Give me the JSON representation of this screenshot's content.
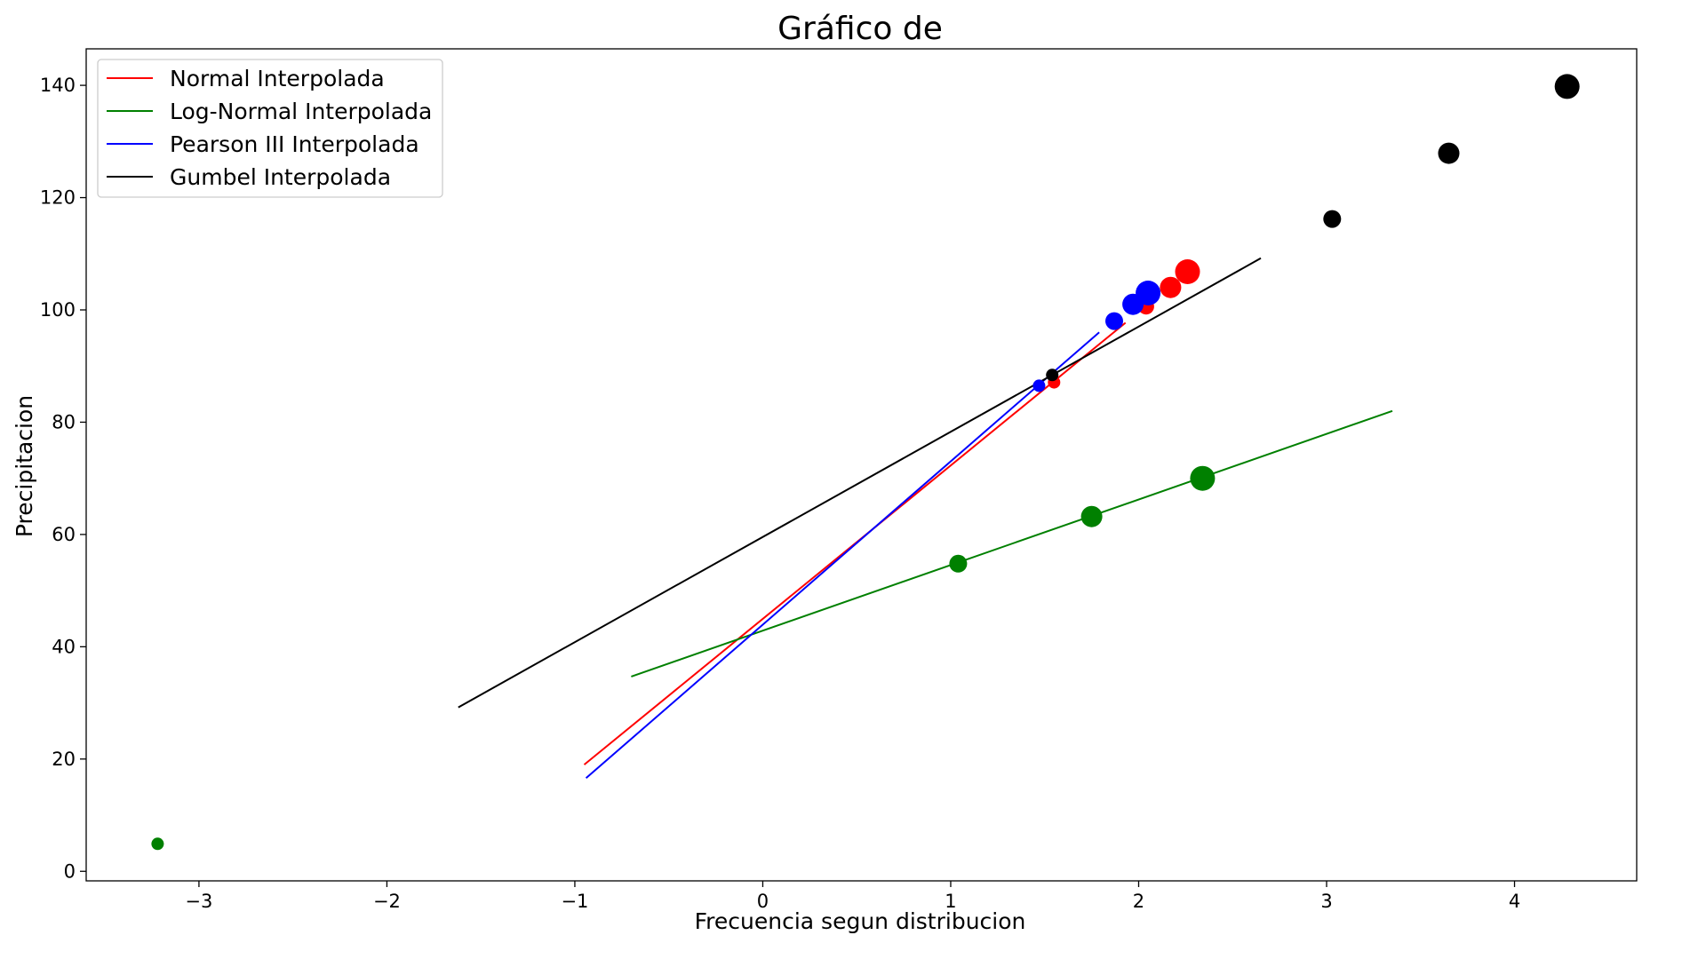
{
  "chart_data": {
    "type": "scatter",
    "title": "Gráfico de",
    "xlabel": "Frecuencia segun distribucion",
    "ylabel": "Precipitacion",
    "xlim": [
      -3.6,
      4.65
    ],
    "ylim": [
      -1.7,
      146.5
    ],
    "x_ticks": [
      -3,
      -2,
      -1,
      0,
      1,
      2,
      3,
      4
    ],
    "y_ticks": [
      0,
      20,
      40,
      60,
      80,
      100,
      120,
      140
    ],
    "x_tick_labels": [
      "−3",
      "−2",
      "−1",
      "0",
      "1",
      "2",
      "3",
      "4"
    ],
    "y_tick_labels": [
      "0",
      "20",
      "40",
      "60",
      "80",
      "100",
      "120",
      "140"
    ],
    "grid": false,
    "legend_position": "top-left",
    "lines": [
      {
        "name": "Normal Interpolada",
        "color": "#ff0000",
        "x": [
          -0.95,
          1.93
        ],
        "y": [
          19.0,
          97.7
        ]
      },
      {
        "name": "Log-Normal Interpolada",
        "color": "#008000",
        "x": [
          -0.7,
          3.35
        ],
        "y": [
          34.7,
          82.0
        ]
      },
      {
        "name": "Pearson III Interpolada",
        "color": "#0000ff",
        "x": [
          -0.94,
          1.79
        ],
        "y": [
          16.6,
          96.0
        ]
      },
      {
        "name": "Gumbel Interpolada",
        "color": "#000000",
        "x": [
          -1.62,
          2.65
        ],
        "y": [
          29.2,
          109.2
        ]
      }
    ],
    "scatter_series": [
      {
        "color": "#ff0000",
        "points": [
          {
            "x": 1.55,
            "y": 87.1,
            "size": 7
          },
          {
            "x": 2.04,
            "y": 100.6,
            "size": 9
          },
          {
            "x": 2.17,
            "y": 104.0,
            "size": 12
          },
          {
            "x": 2.26,
            "y": 106.8,
            "size": 14
          }
        ]
      },
      {
        "color": "#008000",
        "points": [
          {
            "x": -3.22,
            "y": 4.9,
            "size": 7
          },
          {
            "x": 1.04,
            "y": 54.8,
            "size": 10
          },
          {
            "x": 1.75,
            "y": 63.2,
            "size": 12
          },
          {
            "x": 2.34,
            "y": 70.0,
            "size": 14
          }
        ]
      },
      {
        "color": "#0000ff",
        "points": [
          {
            "x": 1.47,
            "y": 86.5,
            "size": 7
          },
          {
            "x": 1.87,
            "y": 98.0,
            "size": 10
          },
          {
            "x": 1.97,
            "y": 101.0,
            "size": 12
          },
          {
            "x": 2.05,
            "y": 103.0,
            "size": 14
          }
        ]
      },
      {
        "color": "#000000",
        "points": [
          {
            "x": 1.54,
            "y": 88.4,
            "size": 7
          },
          {
            "x": 3.03,
            "y": 116.2,
            "size": 10
          },
          {
            "x": 3.65,
            "y": 127.9,
            "size": 12
          },
          {
            "x": 4.28,
            "y": 139.8,
            "size": 14
          }
        ]
      }
    ]
  }
}
